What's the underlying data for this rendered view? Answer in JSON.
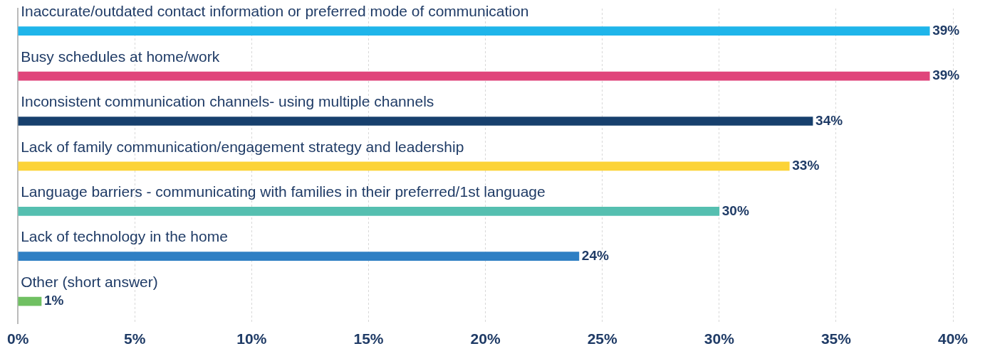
{
  "chart_data": {
    "type": "bar",
    "orientation": "horizontal",
    "categories": [
      "Inaccurate/outdated contact information or preferred mode of communication",
      "Busy schedules at home/work",
      "Inconsistent communication channels- using multiple channels",
      "Lack of family communication/engagement strategy and leadership",
      "Language barriers - communicating with families in their preferred/1st language",
      "Lack of technology in the home",
      "Other (short answer)"
    ],
    "values": [
      39,
      39,
      34,
      33,
      30,
      24,
      1
    ],
    "colors": [
      "#1fb5ea",
      "#e0457b",
      "#17406d",
      "#fcd337",
      "#55bfb0",
      "#2e7fc4",
      "#70c062"
    ],
    "value_labels": [
      "39%",
      "39%",
      "34%",
      "33%",
      "30%",
      "24%",
      "1%"
    ],
    "xlim": [
      0,
      40
    ],
    "xticks": [
      {
        "value": 0,
        "label": "0%"
      },
      {
        "value": 5,
        "label": "5%"
      },
      {
        "value": 10,
        "label": "10%"
      },
      {
        "value": 15,
        "label": "15%"
      },
      {
        "value": 20,
        "label": "20%"
      },
      {
        "value": 25,
        "label": "25%"
      },
      {
        "value": 30,
        "label": "30%"
      },
      {
        "value": 35,
        "label": "35%"
      },
      {
        "value": 40,
        "label": "40%"
      }
    ],
    "grid": "x",
    "legend": false
  }
}
